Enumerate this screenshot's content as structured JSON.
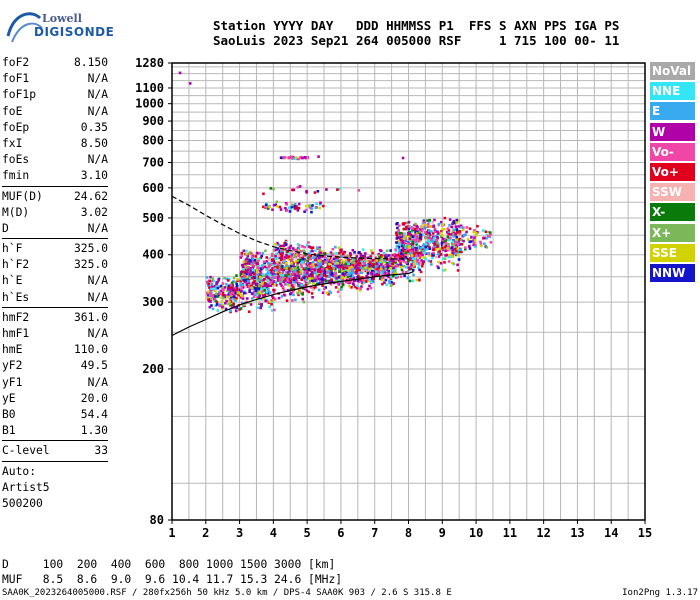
{
  "logo": {
    "line1": "Lowell",
    "line2": "DIGISONDE"
  },
  "header": {
    "line1": "Station YYYY DAY   DDD HHMMSS P1  FFS S AXN PPS IGA PS",
    "line2": "SaoLuis 2023 Sep21 264 005000 RSF     1 715 100 00- 11"
  },
  "params": {
    "group1": [
      {
        "label": "foF2",
        "value": "8.150"
      },
      {
        "label": "foF1",
        "value": "N/A"
      },
      {
        "label": "foF1p",
        "value": "N/A"
      },
      {
        "label": "foE",
        "value": "N/A"
      },
      {
        "label": "foEp",
        "value": "0.35"
      },
      {
        "label": "fxI",
        "value": "8.50"
      },
      {
        "label": "foEs",
        "value": "N/A"
      },
      {
        "label": "fmin",
        "value": "3.10"
      }
    ],
    "group2": [
      {
        "label": "MUF(D)",
        "value": "24.62"
      },
      {
        "label": "M(D)",
        "value": "3.02"
      },
      {
        "label": "D",
        "value": "N/A"
      }
    ],
    "group3": [
      {
        "label": "h`F",
        "value": "325.0"
      },
      {
        "label": "h`F2",
        "value": "325.0"
      },
      {
        "label": "h`E",
        "value": "N/A"
      },
      {
        "label": "h`Es",
        "value": "N/A"
      }
    ],
    "group4": [
      {
        "label": "hmF2",
        "value": "361.0"
      },
      {
        "label": "hmF1",
        "value": "N/A"
      },
      {
        "label": "hmE",
        "value": "110.0"
      },
      {
        "label": "yF2",
        "value": "49.5"
      },
      {
        "label": "yF1",
        "value": "N/A"
      },
      {
        "label": "yE",
        "value": "20.0"
      },
      {
        "label": "B0",
        "value": "54.4"
      },
      {
        "label": "B1",
        "value": "1.30"
      }
    ],
    "group5": [
      {
        "label": "C-level",
        "value": "33"
      }
    ],
    "group6": [
      "Auto:",
      "Artist5",
      "500200"
    ]
  },
  "bottom": {
    "d_line": "D     100  200  400  600  800 1000 1500 3000 [km]",
    "muf_line": "MUF   8.5  8.6  9.0  9.6 10.4 11.7 15.3 24.6 [MHz]"
  },
  "footer": {
    "left": "SAA0K_2023264005000.RSF / 280fx256h 50 kHz 5.0 km / DPS-4 SAA0K 903 / 2.6 S 315.8 E",
    "right": "Ion2Png 1.3.17"
  },
  "legend": [
    {
      "label": "NoVal",
      "color": "#a9a9a9"
    },
    {
      "label": "NNE",
      "color": "#33e6f5"
    },
    {
      "label": "E",
      "color": "#3aaaf0"
    },
    {
      "label": "W",
      "color": "#b000a8"
    },
    {
      "label": "Vo-",
      "color": "#f046a8"
    },
    {
      "label": "Vo+",
      "color": "#e0001e"
    },
    {
      "label": "SSW",
      "color": "#f5b2b0"
    },
    {
      "label": "X-",
      "color": "#0a7a0a"
    },
    {
      "label": "X+",
      "color": "#7ab85a"
    },
    {
      "label": "SSE",
      "color": "#d2d200"
    },
    {
      "label": "NNW",
      "color": "#1414c8"
    }
  ],
  "chart_data": {
    "type": "scatter",
    "xlim": [
      1,
      15
    ],
    "ylim": [
      80,
      1280
    ],
    "xticks": [
      "1",
      "2",
      "3",
      "4",
      "5",
      "6",
      "7",
      "8",
      "9",
      "10",
      "11",
      "12",
      "13",
      "14",
      "15"
    ],
    "yticks": [
      "80",
      "200",
      "300",
      "400",
      "500",
      "600",
      "700",
      "800",
      "900",
      "1000",
      "1100",
      "1280"
    ],
    "y_scale": "log",
    "grid": true,
    "legend_position": "right",
    "profile_curve": [
      [
        1.0,
        245
      ],
      [
        1.5,
        258
      ],
      [
        2.0,
        270
      ],
      [
        2.5,
        283
      ],
      [
        3.0,
        295
      ],
      [
        3.5,
        305
      ],
      [
        4.0,
        314
      ],
      [
        4.5,
        322
      ],
      [
        5.0,
        329
      ],
      [
        5.5,
        335
      ],
      [
        6.0,
        340
      ],
      [
        6.5,
        345
      ],
      [
        7.0,
        350
      ],
      [
        7.5,
        354
      ],
      [
        8.0,
        357
      ],
      [
        8.15,
        361
      ]
    ],
    "dashed_curve": [
      [
        1.0,
        570
      ],
      [
        1.5,
        540
      ],
      [
        2.0,
        508
      ],
      [
        2.5,
        480
      ],
      [
        3.0,
        455
      ],
      [
        3.5,
        435
      ],
      [
        4.0,
        420
      ],
      [
        4.5,
        410
      ],
      [
        5.0,
        402
      ],
      [
        5.5,
        397
      ],
      [
        6.0,
        394
      ],
      [
        6.5,
        392
      ],
      [
        7.0,
        391
      ],
      [
        7.5,
        390
      ],
      [
        8.0,
        390
      ]
    ],
    "echo_clusters": [
      {
        "x": [
          2.0,
          3.0
        ],
        "y": [
          280,
          360
        ],
        "n": 220
      },
      {
        "x": [
          3.0,
          4.0
        ],
        "y": [
          280,
          420
        ],
        "n": 420
      },
      {
        "x": [
          4.0,
          5.0
        ],
        "y": [
          300,
          440
        ],
        "n": 420
      },
      {
        "x": [
          5.0,
          6.0
        ],
        "y": [
          310,
          430
        ],
        "n": 380
      },
      {
        "x": [
          6.0,
          7.0
        ],
        "y": [
          320,
          420
        ],
        "n": 330
      },
      {
        "x": [
          7.0,
          7.6
        ],
        "y": [
          330,
          420
        ],
        "n": 180
      },
      {
        "x": [
          7.6,
          8.3
        ],
        "y": [
          340,
          500
        ],
        "n": 330
      },
      {
        "x": [
          8.3,
          9.5
        ],
        "y": [
          360,
          510
        ],
        "n": 320
      },
      {
        "x": [
          9.5,
          10.4
        ],
        "y": [
          400,
          500
        ],
        "n": 60
      },
      {
        "x": [
          3.6,
          5.5
        ],
        "y": [
          520,
          560
        ],
        "n": 55
      },
      {
        "x": [
          4.1,
          5.0
        ],
        "y": [
          720,
          732
        ],
        "n": 28
      },
      {
        "x": [
          3.5,
          6.6
        ],
        "y": [
          580,
          620
        ],
        "n": 15
      }
    ],
    "echo_points": [
      [
        1.5,
        1140
      ],
      [
        4.9,
        728
      ],
      [
        5.3,
        731
      ],
      [
        7.8,
        725
      ],
      [
        1.2,
        1215
      ]
    ]
  }
}
